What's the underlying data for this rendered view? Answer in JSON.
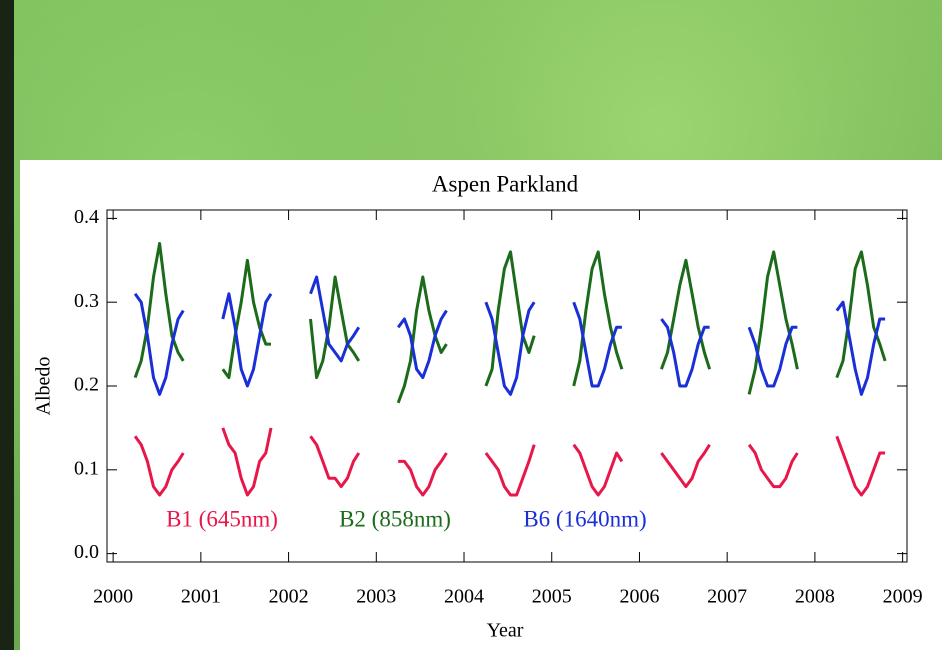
{
  "chart_data": {
    "type": "line",
    "title": "Aspen Parkland",
    "x_label": "Year",
    "y_label": "Albedo",
    "x": [
      2000.25,
      2000.32,
      2000.39,
      2000.46,
      2000.53,
      2000.6,
      2000.67,
      2000.74,
      2000.8,
      2000.9,
      2001.25,
      2001.32,
      2001.39,
      2001.46,
      2001.53,
      2001.6,
      2001.67,
      2001.74,
      2001.8,
      2001.9,
      2002.25,
      2002.32,
      2002.39,
      2002.46,
      2002.53,
      2002.6,
      2002.67,
      2002.74,
      2002.8,
      2002.9,
      2003.25,
      2003.32,
      2003.39,
      2003.46,
      2003.53,
      2003.6,
      2003.67,
      2003.74,
      2003.8,
      2003.9,
      2004.25,
      2004.32,
      2004.39,
      2004.46,
      2004.53,
      2004.6,
      2004.67,
      2004.74,
      2004.8,
      2004.9,
      2005.25,
      2005.32,
      2005.39,
      2005.46,
      2005.53,
      2005.6,
      2005.67,
      2005.74,
      2005.8,
      2005.9,
      2006.25,
      2006.32,
      2006.39,
      2006.46,
      2006.53,
      2006.6,
      2006.67,
      2006.74,
      2006.8,
      2006.9,
      2007.25,
      2007.32,
      2007.39,
      2007.46,
      2007.53,
      2007.6,
      2007.67,
      2007.74,
      2007.8,
      2007.9,
      2008.25,
      2008.32,
      2008.39,
      2008.46,
      2008.53,
      2008.6,
      2008.67,
      2008.74,
      2008.8,
      2008.9
    ],
    "series": [
      {
        "name": "B1 (645nm)",
        "color": "#e8174a",
        "values": [
          0.14,
          0.13,
          0.11,
          0.08,
          0.07,
          0.08,
          0.1,
          0.11,
          0.12,
          null,
          0.15,
          0.13,
          0.12,
          0.09,
          0.07,
          0.08,
          0.11,
          0.12,
          0.15,
          null,
          0.14,
          0.13,
          0.11,
          0.09,
          0.09,
          0.08,
          0.09,
          0.11,
          0.12,
          null,
          0.11,
          0.11,
          0.1,
          0.08,
          0.07,
          0.08,
          0.1,
          0.11,
          0.12,
          null,
          0.12,
          0.11,
          0.1,
          0.08,
          0.07,
          0.07,
          0.09,
          0.11,
          0.13,
          null,
          0.13,
          0.12,
          0.1,
          0.08,
          0.07,
          0.08,
          0.1,
          0.12,
          0.11,
          null,
          0.12,
          0.11,
          0.1,
          0.09,
          0.08,
          0.09,
          0.11,
          0.12,
          0.13,
          null,
          0.13,
          0.12,
          0.1,
          0.09,
          0.08,
          0.08,
          0.09,
          0.11,
          0.12,
          null,
          0.14,
          0.12,
          0.1,
          0.08,
          0.07,
          0.08,
          0.1,
          0.12,
          0.12,
          null
        ]
      },
      {
        "name": "B2 (858nm)",
        "color": "#1b6b1b",
        "values": [
          0.21,
          0.23,
          0.27,
          0.33,
          0.37,
          0.31,
          0.26,
          0.24,
          0.23,
          null,
          0.22,
          0.21,
          0.26,
          0.3,
          0.35,
          0.3,
          0.27,
          0.25,
          0.25,
          null,
          0.28,
          0.21,
          0.23,
          0.27,
          0.33,
          0.29,
          0.25,
          0.24,
          0.23,
          null,
          0.18,
          0.2,
          0.23,
          0.29,
          0.33,
          0.29,
          0.26,
          0.24,
          0.25,
          null,
          0.2,
          0.22,
          0.29,
          0.34,
          0.36,
          0.31,
          0.26,
          0.24,
          0.26,
          null,
          0.2,
          0.23,
          0.29,
          0.34,
          0.36,
          0.31,
          0.27,
          0.24,
          0.22,
          null,
          0.22,
          0.24,
          0.28,
          0.32,
          0.35,
          0.31,
          0.27,
          0.24,
          0.22,
          null,
          0.19,
          0.22,
          0.27,
          0.33,
          0.36,
          0.32,
          0.28,
          0.25,
          0.22,
          null,
          0.21,
          0.23,
          0.28,
          0.34,
          0.36,
          0.32,
          0.27,
          0.25,
          0.23,
          null
        ]
      },
      {
        "name": "B6 (1640nm)",
        "color": "#1a2fd6",
        "values": [
          0.31,
          0.3,
          0.26,
          0.21,
          0.19,
          0.21,
          0.25,
          0.28,
          0.29,
          null,
          0.28,
          0.31,
          0.27,
          0.22,
          0.2,
          0.22,
          0.26,
          0.3,
          0.31,
          null,
          0.31,
          0.33,
          0.29,
          0.25,
          0.24,
          0.23,
          0.25,
          0.26,
          0.27,
          null,
          0.27,
          0.28,
          0.26,
          0.22,
          0.21,
          0.23,
          0.26,
          0.28,
          0.29,
          null,
          0.3,
          0.28,
          0.24,
          0.2,
          0.19,
          0.21,
          0.26,
          0.29,
          0.3,
          null,
          0.3,
          0.28,
          0.24,
          0.2,
          0.2,
          0.22,
          0.25,
          0.27,
          0.27,
          null,
          0.28,
          0.27,
          0.24,
          0.2,
          0.2,
          0.22,
          0.25,
          0.27,
          0.27,
          null,
          0.27,
          0.25,
          0.22,
          0.2,
          0.2,
          0.22,
          0.25,
          0.27,
          0.27,
          null,
          0.29,
          0.3,
          0.26,
          0.22,
          0.19,
          0.21,
          0.25,
          0.28,
          0.28,
          null
        ]
      }
    ],
    "xlim": [
      1999.93,
      2009.05
    ],
    "xticks": [
      2000,
      2001,
      2002,
      2003,
      2004,
      2005,
      2006,
      2007,
      2008,
      2009
    ],
    "ylim": [
      -0.01,
      0.41
    ],
    "yticks": [
      {
        "value": 0,
        "label": "0.0"
      },
      0.1,
      0.2,
      0.3,
      0.4
    ]
  }
}
